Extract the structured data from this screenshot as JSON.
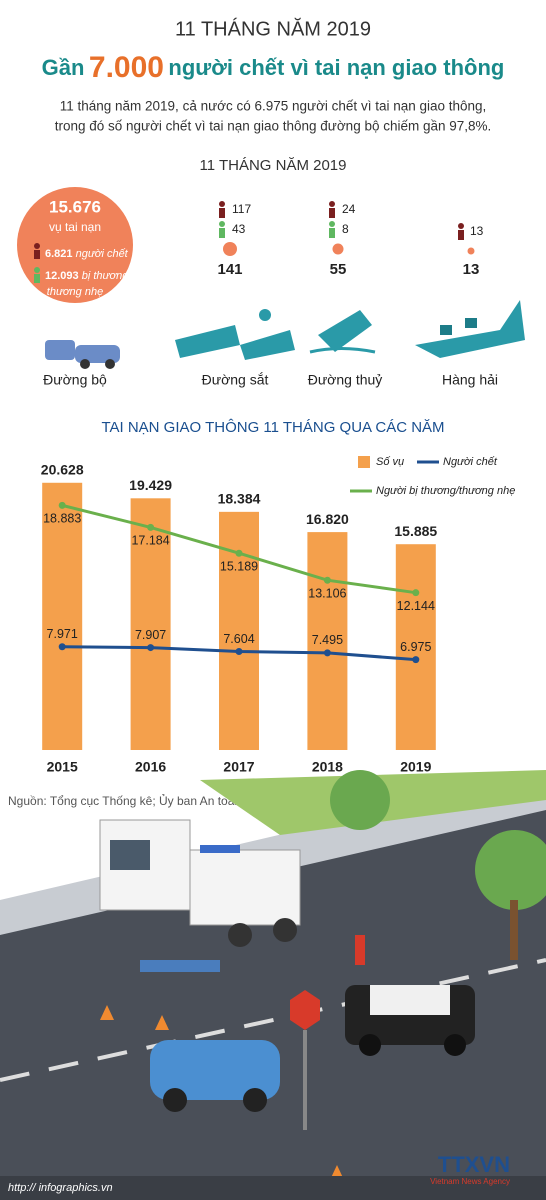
{
  "header": {
    "kicker": "11 THÁNG NĂM 2019",
    "title_prefix": "Gần",
    "title_highlight": "7.000",
    "title_suffix": "người chết vì tai nạn giao thông",
    "intro_line1": "11 tháng năm 2019, cả nước có 6.975 người chết vì tai nạn giao thông,",
    "intro_line2": "trong đó số người chết vì tai nạn giao thông đường bộ chiếm gần 97,8%."
  },
  "section_title": "11 THÁNG NĂM 2019",
  "road": {
    "cases": "15.676",
    "cases_label": "vụ tai nạn",
    "deaths": "6.821",
    "deaths_label": "người chết",
    "injured": "12.093",
    "injured_label_1": "bị thương/",
    "injured_label_2": "thương nhẹ",
    "label": "Đường bộ"
  },
  "rail": {
    "deaths": "117",
    "injured": "43",
    "cases": "141",
    "label": "Đường sắt"
  },
  "water": {
    "deaths": "24",
    "injured": "8",
    "cases": "55",
    "label": "Đường thuỷ"
  },
  "sea": {
    "deaths": "13",
    "cases": "13",
    "label": "Hàng hải"
  },
  "chart_data": {
    "type": "bar",
    "title": "TAI NẠN GIAO THÔNG 11 THÁNG QUA CÁC NĂM",
    "categories": [
      "2015",
      "2016",
      "2017",
      "2018",
      "2019"
    ],
    "ylim": [
      0,
      22000
    ],
    "series": [
      {
        "name": "Số vụ",
        "type": "bar",
        "color": "#f4a04c",
        "values": [
          20628,
          19429,
          18384,
          16820,
          15885
        ],
        "value_labels": [
          "20.628",
          "19.429",
          "18.384",
          "16.820",
          "15.885"
        ]
      },
      {
        "name": "Người chết",
        "type": "line",
        "color": "#1f4f8f",
        "values": [
          7971,
          7907,
          7604,
          7495,
          6975
        ],
        "value_labels": [
          "7.971",
          "7.907",
          "7.604",
          "7.495",
          "6.975"
        ]
      },
      {
        "name": "Người bị thương/thương nhẹ",
        "type": "line",
        "color": "#6ab04c",
        "values": [
          18883,
          17184,
          15189,
          13106,
          12144
        ],
        "value_labels": [
          "18.883",
          "17.184",
          "15.189",
          "13.106",
          "12.144"
        ]
      }
    ]
  },
  "source": "Nguồn: Tổng cục Thống kê; Ủy ban An toàn giao thông Quốc gia",
  "footer": {
    "url": "http:// infographics.vn",
    "logo": "TTXVN",
    "agency": "Vietnam News Agency"
  }
}
